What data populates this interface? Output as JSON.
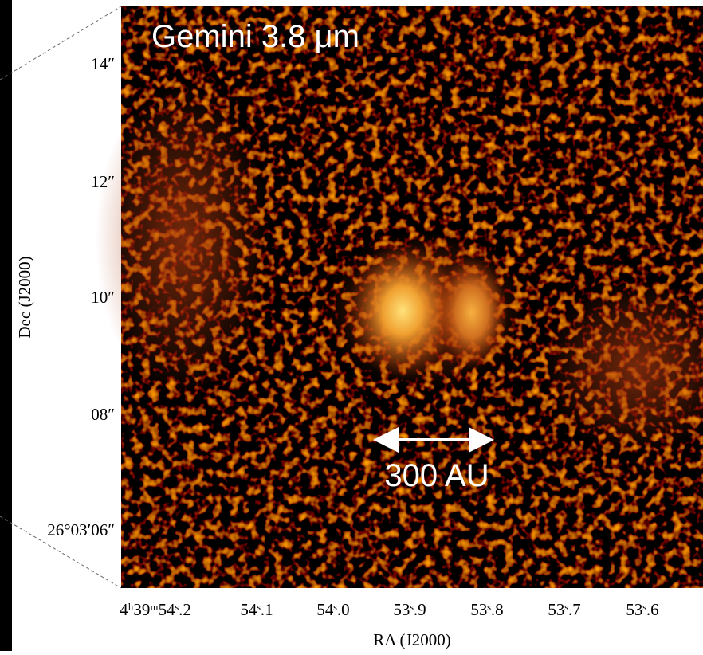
{
  "image": {
    "title": "Gemini 3.8 μm",
    "scale_bar": "300 AU"
  },
  "y_axis": {
    "label": "Dec (J2000)",
    "ticks": [
      "14″",
      "12″",
      "10″",
      "08″",
      "26°03′06″"
    ]
  },
  "x_axis": {
    "label": "RA (J2000)",
    "ticks": [
      "4ʰ39ᵐ54ˢ.2",
      "54ˢ.1",
      "54ˢ.0",
      "53ˢ.9",
      "53ˢ.8",
      "53ˢ.7",
      "53ˢ.6"
    ]
  }
}
